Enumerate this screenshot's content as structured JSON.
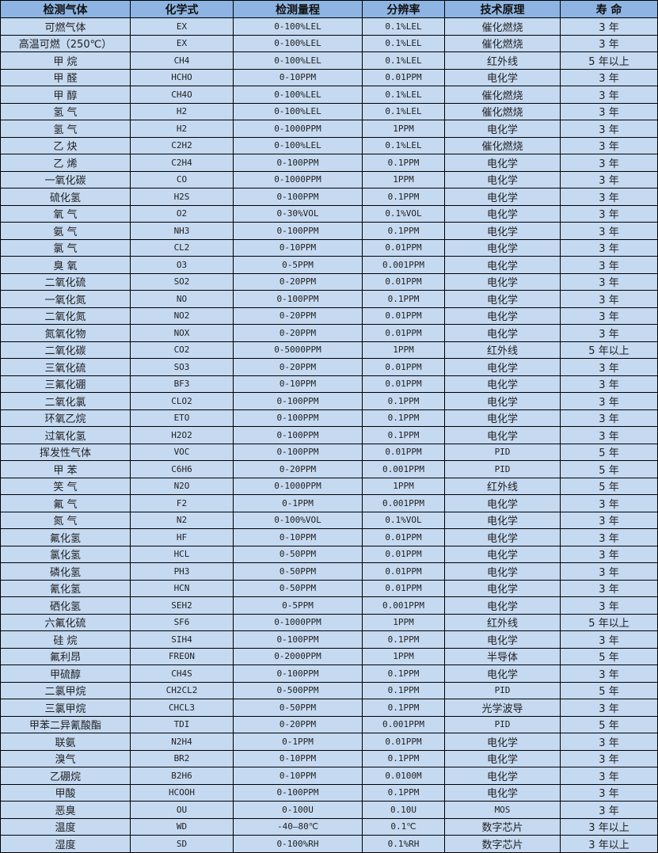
{
  "colors": {
    "header_bg": "#8DB4E2",
    "row_bg": "#C5D9F1",
    "border": "#000000"
  },
  "headers": [
    "检测气体",
    "化学式",
    "检测量程",
    "分辨率",
    "技术原理",
    "寿 命"
  ],
  "rows": [
    [
      "可燃气体",
      "EX",
      "0-100%LEL",
      "0.1%LEL",
      "催化燃烧",
      "3 年"
    ],
    [
      "高温可燃（250℃）",
      "EX",
      "0-100%LEL",
      "0.1%LEL",
      "催化燃烧",
      "3 年"
    ],
    [
      "甲 烷",
      "CH4",
      "0-100%LEL",
      "0.1%LEL",
      "红外线",
      "5 年以上"
    ],
    [
      "甲 醛",
      "HCHO",
      "0-10PPM",
      "0.01PPM",
      "电化学",
      "3 年"
    ],
    [
      "甲 醇",
      "CH4O",
      "0-100%LEL",
      "0.1%LEL",
      "催化燃烧",
      "3 年"
    ],
    [
      "氢 气",
      "H2",
      "0-100%LEL",
      "0.1%LEL",
      "催化燃烧",
      "3 年"
    ],
    [
      "氢 气",
      "H2",
      "0-1000PPM",
      "1PPM",
      "电化学",
      "3 年"
    ],
    [
      "乙 炔",
      "C2H2",
      "0-100%LEL",
      "0.1%LEL",
      "催化燃烧",
      "3 年"
    ],
    [
      "乙 烯",
      "C2H4",
      "0-100PPM",
      "0.1PPM",
      "电化学",
      "3 年"
    ],
    [
      "一氧化碳",
      "CO",
      "0-1000PPM",
      "1PPM",
      "电化学",
      "3 年"
    ],
    [
      "硫化氢",
      "H2S",
      "0-100PPM",
      "0.1PPM",
      "电化学",
      "3 年"
    ],
    [
      "氧 气",
      "O2",
      "0-30%VOL",
      "0.1%VOL",
      "电化学",
      "3 年"
    ],
    [
      "氨 气",
      "NH3",
      "0-100PPM",
      "0.1PPM",
      "电化学",
      "3 年"
    ],
    [
      "氯 气",
      "CL2",
      "0-10PPM",
      "0.01PPM",
      "电化学",
      "3 年"
    ],
    [
      "臭 氧",
      "O3",
      "0-5PPM",
      "0.001PPM",
      "电化学",
      "3 年"
    ],
    [
      "二氧化硫",
      "SO2",
      "0-20PPM",
      "0.01PPM",
      "电化学",
      "3 年"
    ],
    [
      "一氧化氮",
      "NO",
      "0-100PPM",
      "0.1PPM",
      "电化学",
      "3 年"
    ],
    [
      "二氧化氮",
      "NO2",
      "0-20PPM",
      "0.01PPM",
      "电化学",
      "3 年"
    ],
    [
      "氮氧化物",
      "NOX",
      "0-20PPM",
      "0.01PPM",
      "电化学",
      "3 年"
    ],
    [
      "二氧化碳",
      "CO2",
      "0-5000PPM",
      "1PPM",
      "红外线",
      "5 年以上"
    ],
    [
      "三氧化硫",
      "SO3",
      "0-20PPM",
      "0.01PPM",
      "电化学",
      "3 年"
    ],
    [
      "三氟化硼",
      "BF3",
      "0-10PPM",
      "0.01PPM",
      "电化学",
      "3 年"
    ],
    [
      "二氧化氯",
      "CLO2",
      "0-100PPM",
      "0.1PPM",
      "电化学",
      "3 年"
    ],
    [
      "环氧乙烷",
      "ETO",
      "0-100PPM",
      "0.1PPM",
      "电化学",
      "3 年"
    ],
    [
      "过氧化氢",
      "H2O2",
      "0-100PPM",
      "0.1PPM",
      "电化学",
      "3 年"
    ],
    [
      "挥发性气体",
      "VOC",
      "0-100PPM",
      "0.01PPM",
      "PID",
      "5 年"
    ],
    [
      "甲 苯",
      "C6H6",
      "0-20PPM",
      "0.001PPM",
      "PID",
      "5 年"
    ],
    [
      "笑 气",
      "N2O",
      "0-1000PPM",
      "1PPM",
      "红外线",
      "5 年"
    ],
    [
      "氟 气",
      "F2",
      "0-1PPM",
      "0.001PPM",
      "电化学",
      "3 年"
    ],
    [
      "氮 气",
      "N2",
      "0-100%VOL",
      "0.1%VOL",
      "电化学",
      "3 年"
    ],
    [
      "氟化氢",
      "HF",
      "0-10PPM",
      "0.01PPM",
      "电化学",
      "3 年"
    ],
    [
      "氯化氢",
      "HCL",
      "0-50PPM",
      "0.01PPM",
      "电化学",
      "3 年"
    ],
    [
      "磷化氢",
      "PH3",
      "0-50PPM",
      "0.01PPM",
      "电化学",
      "3 年"
    ],
    [
      "氰化氢",
      "HCN",
      "0-50PPM",
      "0.01PPM",
      "电化学",
      "3 年"
    ],
    [
      "硒化氢",
      "SEH2",
      "0-5PPM",
      "0.001PPM",
      "电化学",
      "3 年"
    ],
    [
      "六氟化硫",
      "SF6",
      "0-1000PPM",
      "1PPM",
      "红外线",
      "5 年以上"
    ],
    [
      "硅 烷",
      "SIH4",
      "0-100PPM",
      "0.1PPM",
      "电化学",
      "3 年"
    ],
    [
      "氟利昂",
      "FREON",
      "0-2000PPM",
      "1PPM",
      "半导体",
      "5 年"
    ],
    [
      "甲硫醇",
      "CH4S",
      "0-100PPM",
      "0.1PPM",
      "电化学",
      "3 年"
    ],
    [
      "二氯甲烷",
      "CH2CL2",
      "0-500PPM",
      "0.1PPM",
      "PID",
      "5 年"
    ],
    [
      "三氯甲烷",
      "CHCL3",
      "0-50PPM",
      "0.1PPM",
      "光学波导",
      "3 年"
    ],
    [
      "甲苯二异氰酸酯",
      "TDI",
      "0-20PPM",
      "0.001PPM",
      "PID",
      "5 年"
    ],
    [
      "联氨",
      "N2H4",
      "0-1PPM",
      "0.01PPM",
      "电化学",
      "3 年"
    ],
    [
      "溴气",
      "BR2",
      "0-10PPM",
      "0.1PPM",
      "电化学",
      "3 年"
    ],
    [
      "乙硼烷",
      "B2H6",
      "0-10PPM",
      "0.0100M",
      "电化学",
      "3 年"
    ],
    [
      "甲酸",
      "HCOOH",
      "0-100PPM",
      "0.1PPM",
      "电化学",
      "3 年"
    ],
    [
      "恶臭",
      "OU",
      "0-100U",
      "0.10U",
      "MOS",
      "3 年"
    ],
    [
      "温度",
      "WD",
      "-40—80℃",
      "0.1℃",
      "数字芯片",
      "3 年以上"
    ],
    [
      "湿度",
      "SD",
      "0-100%RH",
      "0.1%RH",
      "数字芯片",
      "3 年以上"
    ]
  ]
}
